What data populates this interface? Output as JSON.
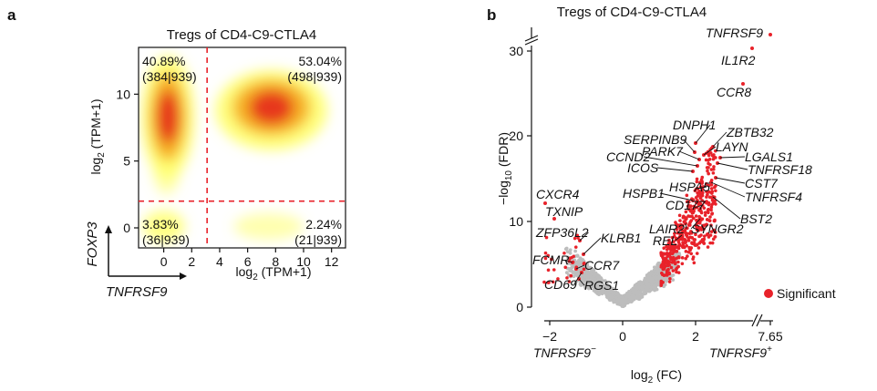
{
  "chart_data": [
    {
      "type": "scatter",
      "panel_label": "a",
      "title": "Tregs of CD4-C9-CTLA4",
      "xlabel_main": "log",
      "xlabel_sub": "2",
      "xlabel_rest": " (TPM+1)",
      "ylabel_main": "log",
      "ylabel_sub": "2",
      "ylabel_rest": " (TPM+1)",
      "xlim": [
        -1.8,
        13
      ],
      "ylim": [
        -1.5,
        13.5
      ],
      "x_ticks": [
        0,
        2,
        4,
        6,
        8,
        10,
        12
      ],
      "y_ticks": [
        0,
        5,
        10
      ],
      "x_gene": "TNFRSF9",
      "y_gene": "FOXP3",
      "thresholds": {
        "x": 3.1,
        "y": 2.0
      },
      "quadrants": [
        {
          "name": "top-left",
          "percent": "40.89%",
          "counts": "(384|939)"
        },
        {
          "name": "top-right",
          "percent": "53.04%",
          "counts": "(498|939)"
        },
        {
          "name": "bottom-left",
          "percent": "3.83%",
          "counts": "(36|939)"
        },
        {
          "name": "bottom-right",
          "percent": "2.24%",
          "counts": "(21|939)"
        }
      ],
      "density_peaks": [
        {
          "x": 0.3,
          "y": 8.3,
          "level": "high"
        },
        {
          "x": 7.7,
          "y": 9.0,
          "level": "high"
        },
        {
          "x": 0.0,
          "y": 0.0,
          "level": "medium"
        },
        {
          "x": 7.5,
          "y": 0.1,
          "level": "low"
        }
      ],
      "colors": {
        "high": "#e52a1c",
        "mid": "#f5a316",
        "low": "#ffff6e",
        "threshold": "#e8222a"
      }
    },
    {
      "type": "scatter",
      "panel_label": "b",
      "title": "Tregs of CD4-C9-CTLA4",
      "xlabel_main": "log",
      "xlabel_sub": "2",
      "xlabel_rest": " (FC)",
      "ylabel_pre": "−log",
      "ylabel_sub": "10",
      "ylabel_rest": " (FDR)",
      "x_ticks": [
        "−2",
        "0",
        "2",
        "7.65"
      ],
      "y_ticks": [
        "0",
        "10",
        "20",
        "30"
      ],
      "x_left_label": "TNFRSF9",
      "x_left_sup": "−",
      "x_right_label": "TNFRSF9",
      "x_right_sup": "+",
      "legend": {
        "label": "Significant",
        "position": "bottom-right"
      },
      "colors": {
        "significant": "#e8222a",
        "background": "#bdbdbd"
      },
      "labeled_genes": [
        {
          "name": "TNFRSF9",
          "x": 7.65,
          "y": 31.5
        },
        {
          "name": "IL1R2",
          "x": 3.5,
          "y": 30.0
        },
        {
          "name": "CCR8",
          "x": 3.3,
          "y": 26.0
        },
        {
          "name": "DNPH1",
          "x": 2.2,
          "y": 20.5
        },
        {
          "name": "ZBTB32",
          "x": 2.5,
          "y": 19.5
        },
        {
          "name": "SERPINB9",
          "x": 1.9,
          "y": 19.0
        },
        {
          "name": "LAYN",
          "x": 2.4,
          "y": 18.5
        },
        {
          "name": "PARK7",
          "x": 2.1,
          "y": 18.0
        },
        {
          "name": "CCND2",
          "x": 2.0,
          "y": 17.5
        },
        {
          "name": "LGALS1",
          "x": 2.6,
          "y": 17.5
        },
        {
          "name": "TNFRSF18",
          "x": 2.5,
          "y": 16.5
        },
        {
          "name": "ICOS",
          "x": 2.1,
          "y": 16.0
        },
        {
          "name": "CST7",
          "x": 2.3,
          "y": 15.5
        },
        {
          "name": "HSPA5",
          "x": 2.0,
          "y": 14.0
        },
        {
          "name": "TNFRSF4",
          "x": 2.4,
          "y": 14.5
        },
        {
          "name": "HSPB1",
          "x": 1.8,
          "y": 13.5
        },
        {
          "name": "CD177",
          "x": 1.9,
          "y": 12.0
        },
        {
          "name": "BST2",
          "x": 2.1,
          "y": 12.5
        },
        {
          "name": "LAIR2",
          "x": 1.8,
          "y": 10.5
        },
        {
          "name": "SYNGR2",
          "x": 1.9,
          "y": 11.0
        },
        {
          "name": "REL",
          "x": 1.6,
          "y": 9.0
        },
        {
          "name": "CXCR4",
          "x": -2.2,
          "y": 12.5
        },
        {
          "name": "TXNIP",
          "x": -2.0,
          "y": 11.0
        },
        {
          "name": "ZFP36L2",
          "x": -1.7,
          "y": 8.5
        },
        {
          "name": "KLRB1",
          "x": -1.3,
          "y": 6.5
        },
        {
          "name": "FCMR",
          "x": -1.6,
          "y": 5.5
        },
        {
          "name": "CCR7",
          "x": -1.2,
          "y": 4.5
        },
        {
          "name": "CD69",
          "x": -1.8,
          "y": 3.0
        },
        {
          "name": "RGS1",
          "x": -1.4,
          "y": 3.5
        }
      ]
    }
  ]
}
